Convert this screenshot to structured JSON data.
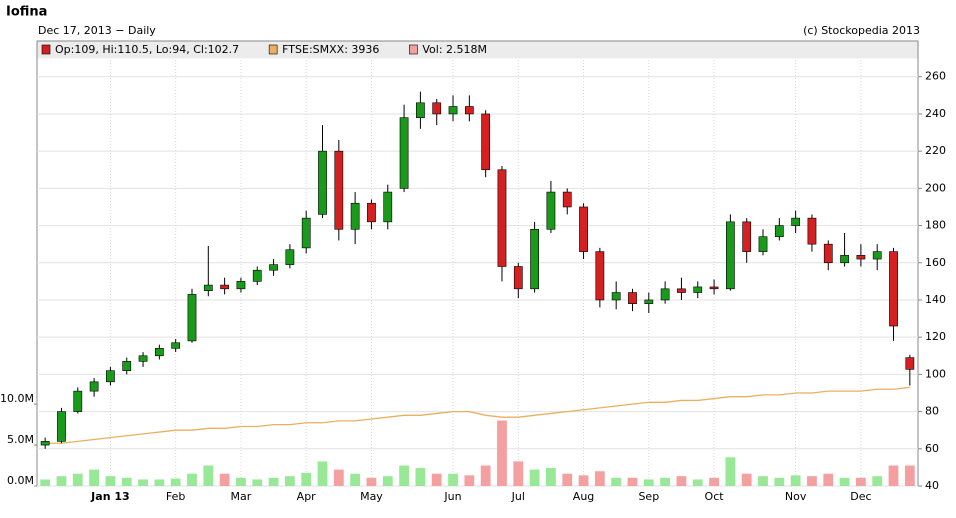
{
  "chart_data": {
    "type": "candlestick",
    "title": "Iofina",
    "subtitle": "Dec 17, 2013 − Daily",
    "credit": "(c) Stockopedia 2013",
    "categories": [
      null,
      null,
      null,
      null,
      "Jan 13",
      null,
      null,
      null,
      "Feb",
      null,
      null,
      null,
      "Mar",
      null,
      null,
      null,
      "Apr",
      null,
      null,
      null,
      "May",
      null,
      null,
      null,
      null,
      "Jun",
      null,
      null,
      null,
      "Jul",
      null,
      null,
      null,
      "Aug",
      null,
      null,
      null,
      "Sep",
      null,
      null,
      null,
      "Oct",
      null,
      null,
      null,
      null,
      "Nov",
      null,
      null,
      null,
      "Dec",
      null,
      null,
      null
    ],
    "ylim": [
      40,
      269
    ],
    "yticks": [
      40,
      60,
      80,
      100,
      120,
      140,
      160,
      180,
      200,
      220,
      240,
      260
    ],
    "y2lim": [
      0,
      52
    ],
    "y2ticks": [
      {
        "value": 0,
        "label": "0.0M"
      },
      {
        "value": 5,
        "label": "5.0M"
      },
      {
        "value": 10,
        "label": "10.0M"
      }
    ],
    "grid": true,
    "series": [
      {
        "name": "Op:109, Hi:110.5, Lo:94, Cl:102.7",
        "color": "#d42020",
        "up_color": "#1a9a1a",
        "open": [
          62,
          64,
          80,
          91,
          96,
          102,
          107,
          110,
          114,
          118,
          145,
          148,
          146,
          150,
          156,
          159,
          168,
          186,
          220,
          178,
          192,
          182,
          200,
          238,
          246,
          240,
          244,
          240,
          210,
          158,
          146,
          178,
          198,
          190,
          166,
          140,
          144,
          138,
          140,
          146,
          144,
          147,
          146,
          182,
          166,
          174,
          180,
          184,
          170,
          160,
          164,
          162,
          166,
          109
        ],
        "high": [
          66,
          82,
          93,
          98,
          104,
          109,
          112,
          116,
          119,
          146,
          169,
          152,
          152,
          158,
          162,
          170,
          188,
          234,
          226,
          198,
          194,
          202,
          245,
          252,
          248,
          250,
          250,
          242,
          212,
          160,
          182,
          204,
          200,
          192,
          168,
          150,
          146,
          144,
          150,
          152,
          150,
          151,
          186,
          184,
          178,
          184,
          188,
          186,
          172,
          176,
          170,
          170,
          168,
          110.5
        ],
        "low": [
          60,
          63,
          79,
          88,
          94,
          100,
          104,
          108,
          112,
          117,
          142,
          143,
          144,
          148,
          153,
          157,
          165,
          184,
          172,
          170,
          178,
          178,
          198,
          232,
          234,
          236,
          236,
          206,
          150,
          141,
          144,
          176,
          186,
          162,
          136,
          135,
          134,
          133,
          138,
          140,
          141,
          143,
          145,
          160,
          164,
          172,
          176,
          166,
          156,
          158,
          158,
          156,
          118,
          94
        ],
        "close": [
          64,
          80,
          91,
          96,
          102,
          107,
          110,
          114,
          117,
          143,
          148,
          146,
          150,
          156,
          159,
          167,
          184,
          220,
          178,
          192,
          182,
          198,
          238,
          246,
          240,
          244,
          240,
          210,
          158,
          146,
          178,
          198,
          190,
          166,
          140,
          144,
          138,
          140,
          146,
          144,
          147,
          146,
          182,
          166,
          174,
          180,
          184,
          170,
          160,
          164,
          162,
          166,
          126,
          102.7
        ]
      },
      {
        "name": "FTSE:SMXX: 3936",
        "color": "#e8b060",
        "values": [
          63,
          63,
          64,
          65,
          66,
          67,
          68,
          69,
          70,
          70,
          71,
          71,
          72,
          72,
          73,
          73,
          74,
          74,
          75,
          75,
          76,
          77,
          78,
          78,
          79,
          80,
          80,
          78,
          77,
          77,
          78,
          79,
          80,
          81,
          82,
          83,
          84,
          85,
          85,
          86,
          86,
          87,
          88,
          88,
          89,
          89,
          90,
          90,
          91,
          91,
          91,
          92,
          92,
          93
        ]
      },
      {
        "name": "Vol: 2.518M",
        "color": "#f4a0a0",
        "up_color": "#98e898",
        "axis": "y2",
        "values": [
          0.8,
          1.2,
          1.5,
          2,
          1.2,
          1,
          0.8,
          0.8,
          0.9,
          1.5,
          2.5,
          1.5,
          1,
          0.8,
          1,
          1.2,
          1.6,
          3,
          2,
          1.5,
          1,
          1.2,
          2.5,
          2.2,
          1.5,
          1.5,
          1.3,
          2.5,
          8,
          3,
          2,
          2.2,
          1.5,
          1.3,
          1.8,
          1,
          1,
          0.8,
          1,
          1.2,
          0.8,
          1,
          3.5,
          1.5,
          1.2,
          1,
          1.3,
          1.2,
          1.5,
          1,
          1,
          1.2,
          2.5,
          2.5
        ]
      }
    ]
  }
}
